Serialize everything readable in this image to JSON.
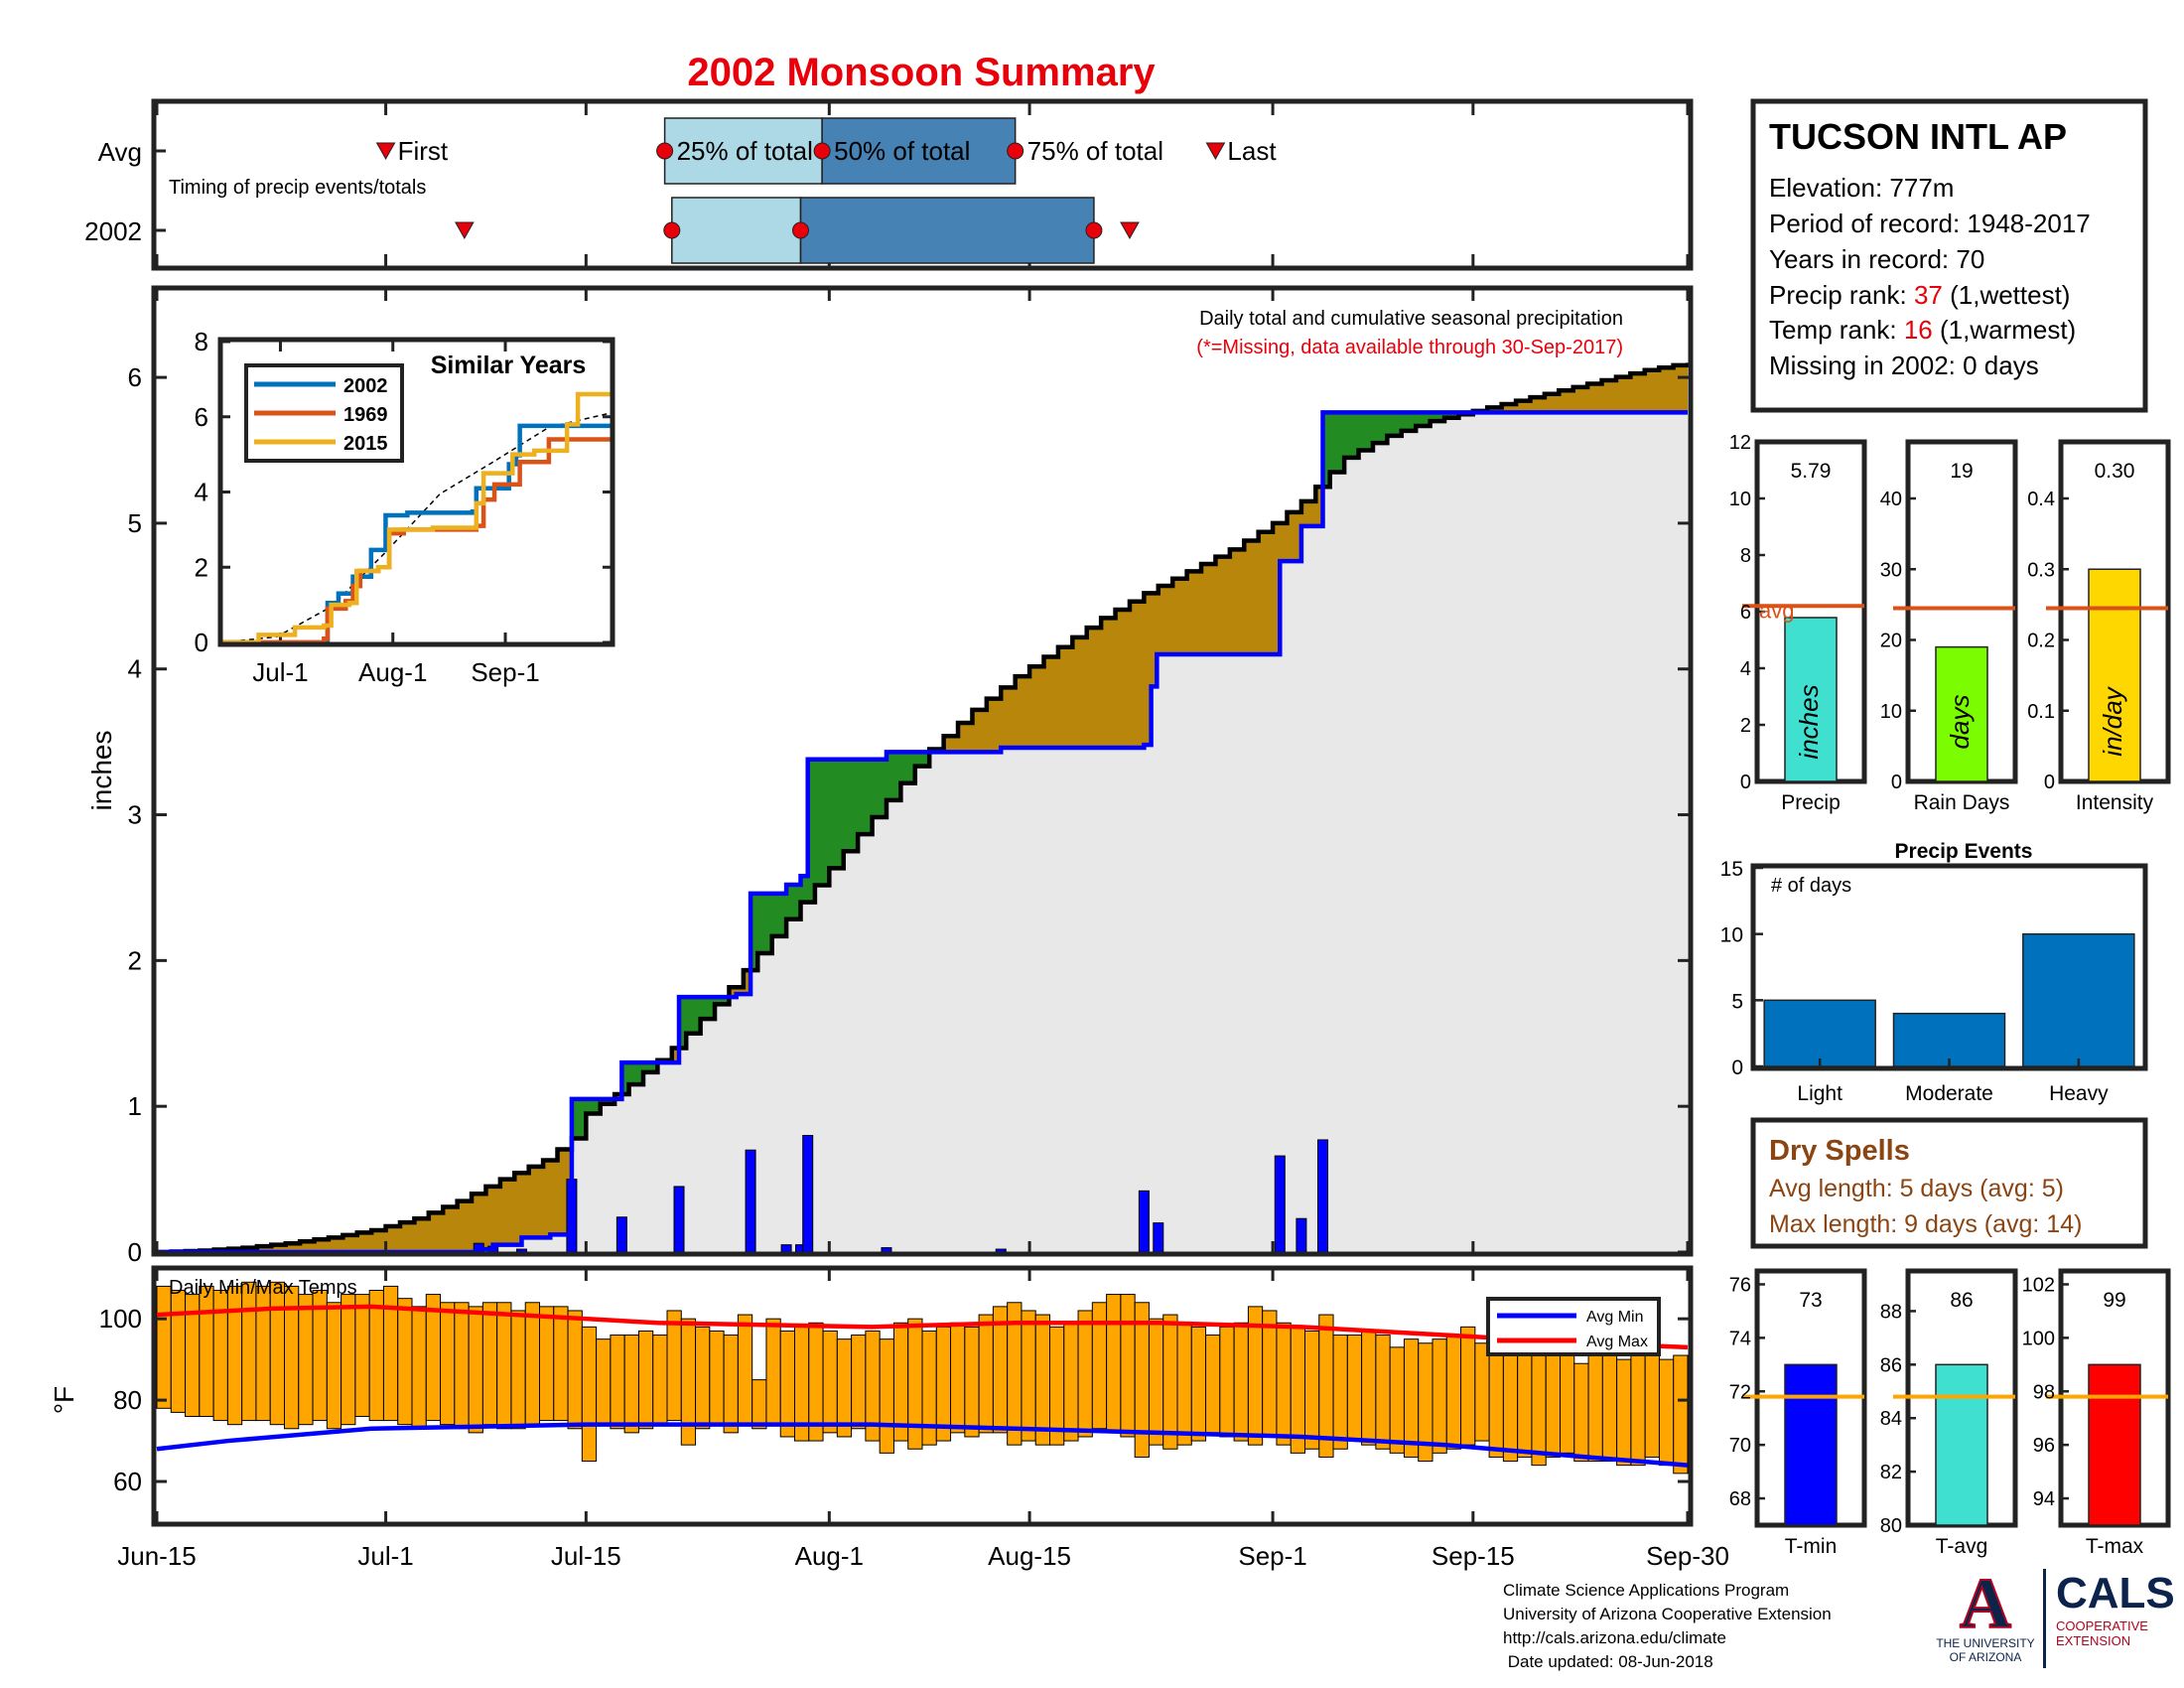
{
  "page": {
    "title": "2002 Monsoon Summary",
    "colors": {
      "title": "#e8000b",
      "obs_fill": "#b8860b",
      "avg_fill": "#228b22",
      "avg_line": "#0000ff",
      "daily_bar": "#0000ff",
      "bg_area": "#e8e8e8"
    }
  },
  "timing": {
    "row_labels": [
      "Avg",
      "2002"
    ],
    "note": "Timing of precip events/totals",
    "avg_labels": {
      "first": "First",
      "p25": "25% of total",
      "p50": "50% of total",
      "p75": "75% of total",
      "last": "Last"
    },
    "avg_days": {
      "first": 16,
      "p25": 35.5,
      "p50": 46.5,
      "p75": 60,
      "last": 74
    },
    "y2002_days": {
      "first": 21.5,
      "p25": 36,
      "p50": 45,
      "p75": 65.5,
      "last": 68
    }
  },
  "station": {
    "name": "TUCSON INTL AP",
    "elevation": "Elevation: 777m",
    "period": "Period of record: 1948-2017",
    "years": "Years in record: 70",
    "precip_rank_label": "Precip rank: ",
    "precip_rank_value": "37",
    "precip_rank_suffix": " (1,wettest)",
    "temp_rank_label": "Temp rank: ",
    "temp_rank_value": "16",
    "temp_rank_suffix": " (1,warmest)",
    "missing": "Missing in 2002: 0 days"
  },
  "dry_spells": {
    "title": "Dry Spells",
    "avg": "Avg length: 5 days (avg: 5)",
    "max": "Max length: 9 days (avg: 14)"
  },
  "footer": {
    "lines": [
      "Climate Science Applications Program",
      "University of Arizona Cooperative Extension",
      "http://cals.arizona.edu/climate",
      " Date updated: 08-Jun-2018"
    ],
    "ua_line1": "THE UNIVERSITY",
    "ua_line2": "OF ARIZONA",
    "cals": "CALS",
    "cals_sub1": "COOPERATIVE",
    "cals_sub2": "EXTENSION"
  },
  "chart_data": [
    {
      "id": "main",
      "type": "area",
      "title": "Daily total and cumulative seasonal precipitation",
      "subtitle": "(*=Missing, data available through 30-Sep-2017)",
      "ylabel": "inches",
      "ylim": [
        0,
        6.6
      ],
      "yticks": [
        0,
        1,
        2,
        3,
        4,
        5,
        6
      ],
      "x_tick_labels": [
        "Jun-15",
        "Jul-1",
        "Jul-15",
        "Aug-1",
        "Aug-15",
        "Sep-1",
        "Sep-15",
        "Sep-30"
      ],
      "x_tick_days": [
        0,
        16,
        30,
        47,
        61,
        78,
        92,
        107
      ],
      "avg_cumulative": [
        [
          0,
          0
        ],
        [
          3,
          0.01
        ],
        [
          6,
          0.03
        ],
        [
          9,
          0.06
        ],
        [
          12,
          0.1
        ],
        [
          15,
          0.15
        ],
        [
          18,
          0.23
        ],
        [
          21,
          0.35
        ],
        [
          24,
          0.5
        ],
        [
          27,
          0.63
        ],
        [
          29,
          0.78
        ],
        [
          30,
          0.95
        ],
        [
          33,
          1.15
        ],
        [
          36,
          1.4
        ],
        [
          39,
          1.7
        ],
        [
          42,
          2.05
        ],
        [
          45,
          2.4
        ],
        [
          48,
          2.75
        ],
        [
          51,
          3.1
        ],
        [
          54,
          3.45
        ],
        [
          57,
          3.72
        ],
        [
          60,
          3.95
        ],
        [
          63,
          4.15
        ],
        [
          66,
          4.35
        ],
        [
          69,
          4.52
        ],
        [
          72,
          4.67
        ],
        [
          75,
          4.82
        ],
        [
          78,
          5.0
        ],
        [
          80,
          5.15
        ],
        [
          83,
          5.45
        ],
        [
          86,
          5.6
        ],
        [
          89,
          5.7
        ],
        [
          92,
          5.77
        ],
        [
          95,
          5.84
        ],
        [
          98,
          5.91
        ],
        [
          101,
          5.98
        ],
        [
          104,
          6.05
        ],
        [
          107,
          6.1
        ]
      ],
      "obs_cumulative": [
        [
          0,
          0
        ],
        [
          22.5,
          0.02
        ],
        [
          23.5,
          0.05
        ],
        [
          25.5,
          0.1
        ],
        [
          27.5,
          0.12
        ],
        [
          28.5,
          0.12
        ],
        [
          29,
          1.05
        ],
        [
          32.5,
          1.3
        ],
        [
          36.5,
          1.75
        ],
        [
          40.5,
          1.77
        ],
        [
          41.5,
          2.46
        ],
        [
          44,
          2.52
        ],
        [
          45,
          2.58
        ],
        [
          45.5,
          3.38
        ],
        [
          51,
          3.43
        ],
        [
          59,
          3.46
        ],
        [
          69,
          3.48
        ],
        [
          69.5,
          3.88
        ],
        [
          69.9,
          4.1
        ],
        [
          78,
          4.1
        ],
        [
          78.5,
          4.74
        ],
        [
          80,
          4.98
        ],
        [
          81,
          4.98
        ],
        [
          81.5,
          5.76
        ],
        [
          107,
          5.76
        ]
      ],
      "daily_bars": [
        [
          22.5,
          0.06
        ],
        [
          23.5,
          0.04
        ],
        [
          25.5,
          0.02
        ],
        [
          29,
          0.5
        ],
        [
          32.5,
          0.24
        ],
        [
          36.5,
          0.45
        ],
        [
          41.5,
          0.7
        ],
        [
          44,
          0.05
        ],
        [
          45,
          0.05
        ],
        [
          45.5,
          0.8
        ],
        [
          51,
          0.03
        ],
        [
          59,
          0.02
        ],
        [
          69,
          0.42
        ],
        [
          70,
          0.2
        ],
        [
          78.5,
          0.66
        ],
        [
          80,
          0.23
        ],
        [
          81.5,
          0.77
        ]
      ]
    },
    {
      "id": "similar",
      "type": "line",
      "title": "Similar Years",
      "ylim": [
        0,
        8
      ],
      "yticks": [
        0,
        2,
        4,
        6,
        8
      ],
      "x_tick_labels": [
        "Jul-1",
        "Aug-1",
        "Sep-1"
      ],
      "x_tick_days": [
        16,
        47,
        78
      ],
      "series": [
        {
          "name": "2002",
          "color": "#0072bd",
          "points": [
            [
              0,
              0
            ],
            [
              28,
              0
            ],
            [
              29,
              1.05
            ],
            [
              32,
              1.3
            ],
            [
              36,
              1.75
            ],
            [
              41,
              2.46
            ],
            [
              45,
              3.38
            ],
            [
              51,
              3.45
            ],
            [
              69,
              3.48
            ],
            [
              70,
              4.1
            ],
            [
              78,
              4.1
            ],
            [
              79,
              4.74
            ],
            [
              81,
              4.98
            ],
            [
              82,
              5.76
            ],
            [
              107,
              5.76
            ]
          ]
        },
        {
          "name": "1969",
          "color": "#d95319",
          "points": [
            [
              0,
              0
            ],
            [
              28,
              0.1
            ],
            [
              29,
              0.9
            ],
            [
              34,
              1.1
            ],
            [
              36,
              1.5
            ],
            [
              38,
              1.9
            ],
            [
              43,
              2.0
            ],
            [
              46,
              2.9
            ],
            [
              50,
              3.0
            ],
            [
              57,
              3.0
            ],
            [
              70,
              3.1
            ],
            [
              72,
              3.8
            ],
            [
              75,
              4.2
            ],
            [
              82,
              4.8
            ],
            [
              90,
              5.4
            ],
            [
              107,
              5.4
            ]
          ]
        },
        {
          "name": "2015",
          "color": "#edb120",
          "points": [
            [
              0,
              0
            ],
            [
              10,
              0.2
            ],
            [
              20,
              0.4
            ],
            [
              28,
              0.45
            ],
            [
              30,
              1.0
            ],
            [
              35,
              1.05
            ],
            [
              37,
              1.9
            ],
            [
              43,
              2.0
            ],
            [
              46,
              3.0
            ],
            [
              58,
              3.05
            ],
            [
              70,
              3.7
            ],
            [
              72,
              4.5
            ],
            [
              80,
              5.0
            ],
            [
              86,
              5.1
            ],
            [
              95,
              5.8
            ],
            [
              98,
              6.6
            ],
            [
              107,
              6.6
            ]
          ]
        }
      ],
      "avg_dashed": [
        [
          0,
          0
        ],
        [
          15,
          0.15
        ],
        [
          30,
          0.95
        ],
        [
          45,
          2.4
        ],
        [
          60,
          3.95
        ],
        [
          75,
          4.82
        ],
        [
          90,
          5.72
        ],
        [
          107,
          6.1
        ]
      ]
    },
    {
      "id": "temps",
      "type": "bar",
      "title": "Daily Min/Max Temps",
      "ylabel": "°F",
      "ylim": [
        50,
        112
      ],
      "yticks": [
        60,
        80,
        100
      ],
      "legend": [
        "Avg Min",
        "Avg Max"
      ],
      "legend_position": "top-right",
      "max_temps": [
        108,
        107,
        106,
        108,
        107,
        108,
        109,
        108,
        109,
        108,
        106,
        107,
        104,
        106,
        106,
        107,
        108,
        105,
        103,
        106,
        104,
        104,
        103,
        104,
        104,
        102,
        104,
        103,
        103,
        102,
        98,
        95,
        96,
        96,
        97,
        96,
        102,
        100,
        98,
        97,
        96,
        101,
        85,
        100,
        97,
        98,
        99,
        97,
        95,
        96,
        97,
        95,
        99,
        100,
        97,
        98,
        99,
        98,
        101,
        103,
        104,
        102,
        101,
        98,
        99,
        102,
        104,
        106,
        106,
        104,
        100,
        101,
        99,
        98,
        96,
        98,
        99,
        103,
        102,
        99,
        98,
        97,
        101,
        96,
        96,
        97,
        96,
        93,
        95,
        94,
        95,
        96,
        98,
        94,
        93,
        92,
        96,
        91,
        92,
        93,
        89,
        95,
        91,
        90,
        92,
        93,
        90,
        91
      ],
      "min_temps": [
        78,
        77,
        76,
        76,
        75,
        74,
        75,
        75,
        74,
        73,
        74,
        75,
        73,
        74,
        76,
        75,
        75,
        74,
        73,
        75,
        74,
        73,
        72,
        74,
        73,
        73,
        74,
        75,
        75,
        73,
        65,
        74,
        73,
        72,
        73,
        74,
        75,
        69,
        73,
        74,
        72,
        74,
        73,
        74,
        71,
        70,
        70,
        72,
        71,
        73,
        70,
        67,
        70,
        68,
        69,
        70,
        72,
        71,
        72,
        72,
        69,
        70,
        69,
        69,
        70,
        71,
        73,
        72,
        71,
        66,
        69,
        68,
        69,
        70,
        72,
        71,
        70,
        69,
        71,
        69,
        67,
        68,
        66,
        68,
        70,
        69,
        68,
        67,
        66,
        65,
        67,
        68,
        69,
        70,
        66,
        65,
        66,
        64,
        66,
        67,
        65,
        65,
        65,
        64,
        64,
        66,
        64,
        62
      ],
      "avg_min": [
        [
          0,
          68
        ],
        [
          5,
          70
        ],
        [
          15,
          73
        ],
        [
          30,
          74
        ],
        [
          40,
          74
        ],
        [
          50,
          74
        ],
        [
          60,
          73
        ],
        [
          70,
          72
        ],
        [
          80,
          71
        ],
        [
          90,
          69
        ],
        [
          100,
          66
        ],
        [
          107,
          64
        ]
      ],
      "avg_max": [
        [
          0,
          101
        ],
        [
          8,
          102.5
        ],
        [
          15,
          103
        ],
        [
          25,
          101
        ],
        [
          35,
          99
        ],
        [
          50,
          98
        ],
        [
          60,
          99
        ],
        [
          70,
          99
        ],
        [
          80,
          98
        ],
        [
          90,
          96
        ],
        [
          100,
          94
        ],
        [
          107,
          93
        ]
      ]
    },
    {
      "id": "precip_total",
      "type": "bar",
      "category": "Precip",
      "value": 5.79,
      "value_label": "5.79",
      "unit": "inches",
      "avg": 6.2,
      "avg_label": "avg",
      "ylim": [
        0,
        12
      ],
      "yticks": [
        0,
        2,
        4,
        6,
        8,
        10,
        12
      ],
      "color": "#40e0d0"
    },
    {
      "id": "rain_days",
      "type": "bar",
      "category": "Rain Days",
      "value": 19,
      "value_label": "19",
      "unit": "days",
      "avg": 24.5,
      "ylim": [
        0,
        48
      ],
      "yticks": [
        0,
        10,
        20,
        30,
        40
      ],
      "color": "#7cfc00"
    },
    {
      "id": "intensity",
      "type": "bar",
      "category": "Intensity",
      "value": 0.3,
      "value_label": "0.30",
      "unit": "in/day",
      "avg": 0.245,
      "ylim": [
        0,
        0.48
      ],
      "yticks": [
        "0",
        "0.1",
        "0.2",
        "0.3",
        "0.4"
      ],
      "color": "#ffd700"
    },
    {
      "id": "events",
      "type": "bar",
      "title": "Precip Events",
      "ylabel_inner": "# of days",
      "categories": [
        "Light",
        "Moderate",
        "Heavy"
      ],
      "values": [
        5,
        4,
        10
      ],
      "ylim": [
        0,
        15
      ],
      "yticks": [
        0,
        5,
        10,
        15
      ],
      "color": "#0072bd"
    },
    {
      "id": "tmin",
      "type": "bar",
      "category": "T-min",
      "value": 73,
      "value_label": "73",
      "avg": 71.8,
      "ylim": [
        67,
        76.5
      ],
      "yticks": [
        68,
        70,
        72,
        74,
        76
      ],
      "color": "#0000ff"
    },
    {
      "id": "tavg",
      "type": "bar",
      "category": "T-avg",
      "value": 86,
      "value_label": "86",
      "avg": 84.8,
      "ylim": [
        80,
        89.5
      ],
      "yticks": [
        80,
        82,
        84,
        86,
        88
      ],
      "color": "#40e0d0"
    },
    {
      "id": "tmax",
      "type": "bar",
      "category": "T-max",
      "value": 99,
      "value_label": "99",
      "avg": 97.8,
      "ylim": [
        93,
        102.5
      ],
      "yticks": [
        94,
        96,
        98,
        100,
        102
      ],
      "color": "#ff0000"
    }
  ]
}
